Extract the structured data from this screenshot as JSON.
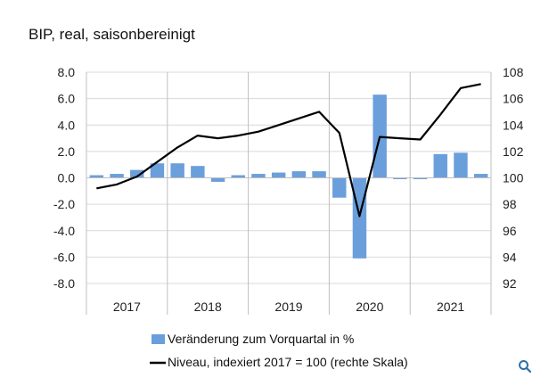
{
  "title": "BIP, real, saisonbereinigt",
  "colors": {
    "bar": "#6a9fdc",
    "line": "#000000",
    "grid": "#d9d9d9",
    "axis": "#bfbfbf",
    "icon": "#2f6fa8"
  },
  "chart_data": {
    "type": "bar+line",
    "title": "BIP, real, saisonbereinigt",
    "categories": [
      "2017 Q1",
      "2017 Q2",
      "2017 Q3",
      "2017 Q4",
      "2018 Q1",
      "2018 Q2",
      "2018 Q3",
      "2018 Q4",
      "2019 Q1",
      "2019 Q2",
      "2019 Q3",
      "2019 Q4",
      "2020 Q1",
      "2020 Q2",
      "2020 Q3",
      "2020 Q4",
      "2021 Q1",
      "2021 Q2",
      "2021 Q3",
      "2021 Q4"
    ],
    "year_labels": [
      "2017",
      "2018",
      "2019",
      "2020",
      "2021"
    ],
    "y_left": {
      "ticks": [
        "8.0",
        "6.0",
        "4.0",
        "2.0",
        "0.0",
        "-2.0",
        "-4.0",
        "-6.0",
        "-8.0"
      ],
      "lim": [
        -8,
        8
      ]
    },
    "y_right": {
      "ticks": [
        "108",
        "106",
        "104",
        "102",
        "100",
        "98",
        "96",
        "94",
        "92"
      ],
      "lim": [
        92,
        108
      ]
    },
    "grid": true,
    "series": [
      {
        "name": "Veränderung zum Vorquartal in %",
        "type": "bar",
        "axis": "left",
        "values": [
          0.2,
          0.3,
          0.6,
          1.1,
          1.1,
          0.9,
          -0.3,
          0.2,
          0.3,
          0.4,
          0.5,
          0.5,
          -1.5,
          -6.1,
          6.3,
          -0.1,
          -0.1,
          1.8,
          1.9,
          0.3
        ]
      },
      {
        "name": "Niveau, indexiert 2017 = 100 (rechte Skala)",
        "type": "line",
        "axis": "right",
        "values": [
          99.2,
          99.5,
          100.1,
          101.2,
          102.3,
          103.2,
          103.0,
          103.2,
          103.5,
          104.0,
          104.5,
          105.0,
          103.4,
          97.1,
          103.1,
          103.0,
          102.9,
          104.8,
          106.8,
          107.1
        ]
      }
    ],
    "legend_position": "bottom"
  },
  "legend": {
    "bar_label": "Veränderung zum Vorquartal in %",
    "line_label": "Niveau, indexiert 2017 = 100 (rechte Skala)"
  },
  "icons": {
    "zoom": "magnifier-icon"
  }
}
